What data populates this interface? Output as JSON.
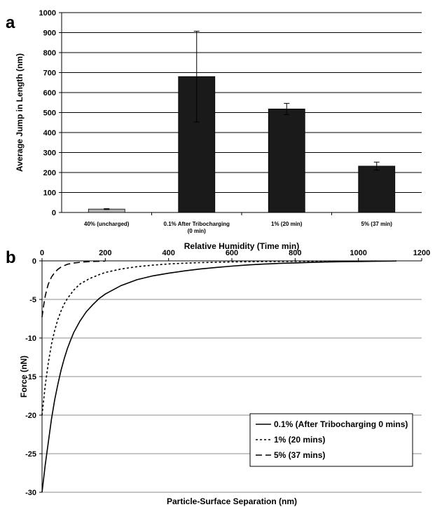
{
  "panels": {
    "a": "a",
    "b": "b"
  },
  "chart_data": [
    {
      "type": "bar",
      "panel": "a",
      "ylabel": "Average Jump in Length  (nm)",
      "xlabel": "Relative Humidity (Time min)",
      "ylim": [
        0,
        1000
      ],
      "yticks": [
        0,
        100,
        200,
        300,
        400,
        500,
        600,
        700,
        800,
        900,
        1000
      ],
      "grid": true,
      "categories": [
        {
          "lines": [
            "40% (uncharged)"
          ]
        },
        {
          "lines": [
            "0.1% After Tribocharging",
            "(0 min)"
          ]
        },
        {
          "lines": [
            "1% (20 min)"
          ]
        },
        {
          "lines": [
            "5% (37 min)"
          ]
        }
      ],
      "values": [
        17,
        680,
        518,
        232
      ],
      "errors": [
        2,
        227,
        28,
        20
      ],
      "colors": [
        "#b3b3b3",
        "#1a1a1a",
        "#1a1a1a",
        "#1a1a1a"
      ]
    },
    {
      "type": "line",
      "panel": "b",
      "xlabel": "Particle-Surface Separation (nm)",
      "ylabel": "Force (nN)",
      "xlim": [
        0,
        1200
      ],
      "ylim": [
        -30,
        0
      ],
      "xticks": [
        0,
        200,
        400,
        600,
        800,
        1000,
        1200
      ],
      "yticks": [
        0,
        -5,
        -10,
        -15,
        -20,
        -25,
        -30
      ],
      "grid": true,
      "legend_position": "bottom-right",
      "series": [
        {
          "name": "0.1% (After Tribocharging 0 mins)",
          "dash": "solid",
          "x": [
            0,
            10,
            20,
            30,
            40,
            50,
            60,
            70,
            80,
            90,
            100,
            120,
            140,
            160,
            180,
            200,
            250,
            300,
            350,
            400,
            450,
            500,
            550,
            600,
            650,
            700,
            750,
            800,
            850,
            900,
            950,
            1000,
            1050,
            1100,
            1120
          ],
          "y": [
            -30,
            -26.5,
            -23.5,
            -20.5,
            -18.0,
            -16.0,
            -14.2,
            -12.7,
            -11.4,
            -10.3,
            -9.3,
            -7.8,
            -6.6,
            -5.7,
            -4.9,
            -4.3,
            -3.2,
            -2.45,
            -1.95,
            -1.6,
            -1.3,
            -1.05,
            -0.85,
            -0.68,
            -0.53,
            -0.42,
            -0.33,
            -0.26,
            -0.2,
            -0.15,
            -0.11,
            -0.08,
            -0.05,
            -0.03,
            -0.02
          ]
        },
        {
          "name": "1% (20 mins)",
          "dash": "dot",
          "x": [
            0,
            10,
            20,
            30,
            40,
            50,
            60,
            70,
            80,
            100,
            120,
            150,
            180,
            200,
            250,
            300,
            350,
            400,
            450,
            500,
            550,
            600,
            700,
            800,
            900,
            1000,
            1060
          ],
          "y": [
            -20,
            -16.2,
            -13.2,
            -10.8,
            -9.0,
            -7.6,
            -6.5,
            -5.6,
            -4.9,
            -3.8,
            -3.0,
            -2.3,
            -1.8,
            -1.5,
            -1.05,
            -0.75,
            -0.55,
            -0.4,
            -0.3,
            -0.23,
            -0.18,
            -0.14,
            -0.09,
            -0.06,
            -0.04,
            -0.03,
            -0.02
          ]
        },
        {
          "name": "5% (37 mins)",
          "dash": "dash",
          "x": [
            0,
            5,
            10,
            15,
            20,
            30,
            40,
            50,
            60,
            80,
            100,
            130,
            160,
            200
          ],
          "y": [
            -7.3,
            -5.8,
            -4.6,
            -3.7,
            -3.0,
            -2.1,
            -1.5,
            -1.1,
            -0.8,
            -0.45,
            -0.28,
            -0.15,
            -0.08,
            -0.04
          ]
        }
      ]
    }
  ]
}
